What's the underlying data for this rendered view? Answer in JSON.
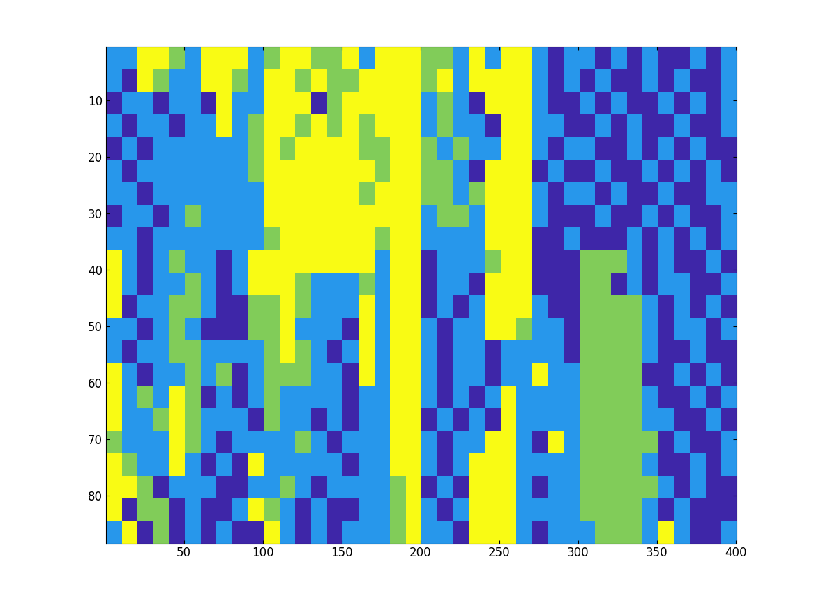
{
  "chart_data": {
    "type": "heatmap",
    "xlim": [
      0.5,
      400.5
    ],
    "ylim": [
      88.5,
      0.5
    ],
    "xticks": [
      50,
      100,
      150,
      200,
      250,
      300,
      350,
      400
    ],
    "yticks": [
      10,
      20,
      30,
      40,
      50,
      60,
      70,
      80
    ],
    "colors": [
      "#3E26A8",
      "#2797EB",
      "#81CC59",
      "#F9FB14"
    ],
    "cells": [
      [
        2,
        2,
        4,
        4,
        3,
        2,
        4,
        4,
        4,
        2,
        3,
        4,
        4,
        3,
        3,
        4,
        2,
        4,
        4,
        4,
        3,
        3,
        2,
        4,
        2,
        4,
        4,
        2,
        1,
        2,
        2,
        1,
        2,
        1,
        2,
        1,
        1,
        2,
        1,
        2
      ],
      [
        2,
        1,
        4,
        3,
        2,
        2,
        4,
        4,
        3,
        2,
        4,
        4,
        3,
        4,
        3,
        3,
        4,
        4,
        4,
        4,
        3,
        4,
        2,
        4,
        4,
        4,
        4,
        2,
        1,
        2,
        1,
        2,
        1,
        1,
        2,
        1,
        2,
        1,
        1,
        2
      ],
      [
        1,
        2,
        2,
        1,
        2,
        2,
        1,
        4,
        2,
        2,
        4,
        4,
        4,
        1,
        3,
        4,
        4,
        4,
        4,
        4,
        2,
        3,
        2,
        1,
        4,
        4,
        4,
        2,
        1,
        1,
        2,
        1,
        2,
        1,
        1,
        2,
        1,
        2,
        1,
        2
      ],
      [
        2,
        1,
        2,
        2,
        1,
        2,
        2,
        4,
        2,
        3,
        4,
        4,
        3,
        4,
        3,
        4,
        3,
        4,
        4,
        4,
        2,
        3,
        2,
        2,
        1,
        4,
        4,
        2,
        2,
        1,
        1,
        2,
        1,
        2,
        1,
        1,
        2,
        1,
        1,
        2
      ],
      [
        1,
        2,
        1,
        2,
        2,
        2,
        2,
        2,
        2,
        3,
        4,
        3,
        4,
        4,
        4,
        4,
        3,
        3,
        4,
        4,
        3,
        2,
        3,
        2,
        2,
        4,
        4,
        2,
        1,
        2,
        2,
        1,
        1,
        2,
        1,
        2,
        1,
        2,
        1,
        1
      ],
      [
        2,
        1,
        2,
        2,
        2,
        2,
        2,
        2,
        2,
        3,
        4,
        4,
        4,
        4,
        4,
        4,
        4,
        3,
        4,
        4,
        3,
        3,
        2,
        1,
        4,
        4,
        4,
        1,
        2,
        1,
        1,
        2,
        1,
        1,
        2,
        1,
        2,
        1,
        2,
        1
      ],
      [
        2,
        2,
        1,
        2,
        2,
        2,
        2,
        2,
        2,
        2,
        4,
        4,
        4,
        4,
        4,
        4,
        3,
        4,
        4,
        4,
        3,
        3,
        2,
        3,
        4,
        4,
        4,
        2,
        1,
        2,
        2,
        1,
        2,
        1,
        1,
        2,
        1,
        1,
        2,
        2
      ],
      [
        1,
        2,
        2,
        1,
        2,
        3,
        2,
        2,
        2,
        2,
        4,
        4,
        4,
        4,
        4,
        4,
        4,
        4,
        4,
        4,
        2,
        3,
        3,
        2,
        4,
        4,
        4,
        2,
        1,
        1,
        1,
        2,
        1,
        1,
        2,
        1,
        2,
        1,
        1,
        2
      ],
      [
        2,
        2,
        1,
        2,
        2,
        2,
        2,
        2,
        2,
        2,
        3,
        4,
        4,
        4,
        4,
        4,
        4,
        3,
        4,
        4,
        2,
        2,
        2,
        2,
        4,
        4,
        4,
        1,
        1,
        2,
        1,
        1,
        1,
        2,
        1,
        2,
        1,
        2,
        1,
        2
      ],
      [
        4,
        2,
        1,
        2,
        3,
        2,
        2,
        1,
        2,
        4,
        4,
        4,
        4,
        4,
        4,
        4,
        4,
        2,
        4,
        4,
        1,
        2,
        2,
        2,
        3,
        4,
        4,
        1,
        1,
        1,
        3,
        3,
        3,
        2,
        1,
        2,
        1,
        1,
        2,
        1
      ],
      [
        4,
        2,
        1,
        2,
        2,
        3,
        2,
        1,
        2,
        4,
        4,
        4,
        3,
        2,
        2,
        2,
        3,
        2,
        4,
        4,
        1,
        2,
        2,
        1,
        4,
        4,
        4,
        1,
        1,
        1,
        3,
        3,
        1,
        2,
        1,
        2,
        2,
        1,
        1,
        2
      ],
      [
        4,
        1,
        2,
        2,
        3,
        3,
        2,
        1,
        1,
        3,
        3,
        4,
        3,
        2,
        2,
        2,
        4,
        2,
        4,
        4,
        1,
        2,
        1,
        2,
        4,
        4,
        4,
        2,
        1,
        1,
        3,
        3,
        3,
        3,
        2,
        1,
        2,
        1,
        2,
        1
      ],
      [
        2,
        2,
        1,
        2,
        3,
        2,
        1,
        1,
        1,
        3,
        3,
        4,
        2,
        2,
        2,
        1,
        4,
        2,
        4,
        4,
        2,
        1,
        2,
        2,
        4,
        4,
        3,
        2,
        2,
        1,
        3,
        3,
        3,
        3,
        2,
        1,
        2,
        2,
        1,
        2
      ],
      [
        2,
        1,
        2,
        2,
        3,
        3,
        2,
        2,
        2,
        2,
        3,
        4,
        3,
        2,
        1,
        2,
        4,
        2,
        4,
        4,
        2,
        1,
        2,
        2,
        1,
        2,
        2,
        2,
        2,
        1,
        3,
        3,
        3,
        3,
        2,
        1,
        1,
        2,
        1,
        1
      ],
      [
        4,
        2,
        1,
        2,
        2,
        3,
        2,
        3,
        1,
        2,
        3,
        3,
        3,
        2,
        2,
        1,
        4,
        2,
        4,
        4,
        2,
        1,
        2,
        2,
        1,
        2,
        2,
        4,
        2,
        2,
        3,
        3,
        3,
        3,
        1,
        1,
        2,
        1,
        2,
        1
      ],
      [
        4,
        2,
        3,
        2,
        4,
        3,
        1,
        2,
        1,
        2,
        3,
        2,
        2,
        2,
        2,
        1,
        2,
        2,
        4,
        4,
        2,
        1,
        2,
        1,
        2,
        4,
        2,
        2,
        2,
        2,
        3,
        3,
        3,
        3,
        2,
        1,
        1,
        2,
        1,
        2
      ],
      [
        4,
        2,
        2,
        3,
        4,
        3,
        2,
        2,
        2,
        1,
        3,
        2,
        2,
        1,
        2,
        1,
        2,
        2,
        4,
        4,
        1,
        2,
        1,
        2,
        1,
        4,
        2,
        2,
        2,
        2,
        3,
        3,
        3,
        3,
        2,
        2,
        1,
        1,
        2,
        1
      ],
      [
        3,
        2,
        2,
        2,
        4,
        3,
        2,
        1,
        2,
        2,
        2,
        2,
        3,
        2,
        1,
        2,
        2,
        2,
        4,
        4,
        2,
        1,
        2,
        2,
        4,
        4,
        2,
        1,
        4,
        2,
        3,
        3,
        3,
        3,
        3,
        1,
        2,
        1,
        1,
        2
      ],
      [
        4,
        3,
        2,
        2,
        4,
        2,
        1,
        2,
        1,
        4,
        2,
        2,
        2,
        2,
        2,
        1,
        2,
        2,
        4,
        4,
        2,
        1,
        2,
        4,
        4,
        4,
        2,
        2,
        2,
        2,
        3,
        3,
        3,
        3,
        2,
        1,
        1,
        2,
        1,
        2
      ],
      [
        4,
        4,
        3,
        1,
        2,
        2,
        2,
        1,
        1,
        2,
        2,
        3,
        2,
        1,
        2,
        2,
        2,
        2,
        3,
        4,
        1,
        2,
        1,
        4,
        4,
        4,
        2,
        1,
        2,
        2,
        3,
        3,
        3,
        3,
        3,
        2,
        1,
        2,
        1,
        1
      ],
      [
        4,
        1,
        3,
        3,
        1,
        2,
        1,
        1,
        2,
        4,
        3,
        2,
        1,
        2,
        1,
        1,
        2,
        2,
        3,
        4,
        2,
        1,
        2,
        4,
        4,
        4,
        2,
        2,
        2,
        2,
        3,
        3,
        3,
        3,
        2,
        1,
        2,
        1,
        1,
        1
      ],
      [
        2,
        4,
        1,
        3,
        1,
        2,
        1,
        2,
        1,
        1,
        4,
        2,
        1,
        2,
        1,
        2,
        2,
        2,
        3,
        4,
        2,
        2,
        1,
        4,
        4,
        4,
        2,
        1,
        2,
        2,
        2,
        3,
        3,
        3,
        2,
        4,
        2,
        1,
        1,
        2
      ]
    ]
  }
}
